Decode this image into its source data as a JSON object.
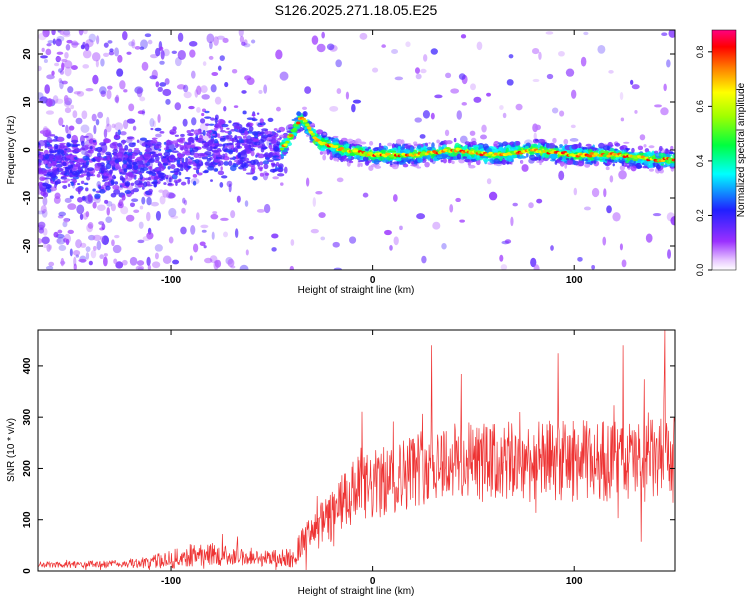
{
  "figure": {
    "title": "S126.2025.271.18.05.E25"
  },
  "colors": {
    "snr_line": "#ee3333",
    "axes": "#000000",
    "background": "#ffffff",
    "spectrogram_low": "#7b00e6",
    "spectrogram_high": "#ff0000"
  },
  "chart_data": [
    {
      "type": "heatmap",
      "title": "S126.2025.271.18.05.E25",
      "xlabel": "Height of straight line (km)",
      "ylabel": "Frequency (Hz)",
      "xlim": [
        -166,
        150
      ],
      "ylim": [
        -25,
        25
      ],
      "x_ticks": [
        -100,
        0,
        100
      ],
      "y_ticks": [
        -20,
        -10,
        0,
        10,
        20
      ],
      "grid": false,
      "colorbar": {
        "label": "Normalized spectral amplitude",
        "range": [
          0,
          0.88
        ],
        "ticks": [
          0.0,
          0.2,
          0.4,
          0.6,
          0.8
        ],
        "colormap": "rainbow"
      },
      "ridge": {
        "description_points": [
          {
            "x": -110,
            "y": -3
          },
          {
            "x": -80,
            "y": 1
          },
          {
            "x": -55,
            "y": 1
          },
          {
            "x": -45,
            "y": 0
          },
          {
            "x": -35,
            "y": 7
          },
          {
            "x": -28,
            "y": 2
          },
          {
            "x": -15,
            "y": 0
          },
          {
            "x": 0,
            "y": -1
          },
          {
            "x": 20,
            "y": -1
          },
          {
            "x": 40,
            "y": 0
          },
          {
            "x": 60,
            "y": -1
          },
          {
            "x": 80,
            "y": 0
          },
          {
            "x": 100,
            "y": -1
          },
          {
            "x": 120,
            "y": -1
          },
          {
            "x": 140,
            "y": -2
          },
          {
            "x": 150,
            "y": -2
          }
        ]
      }
    },
    {
      "type": "line",
      "xlabel": "Height of straight line (km)",
      "ylabel": "SNR (10 * v/v)",
      "xlim": [
        -166,
        150
      ],
      "ylim": [
        0,
        470
      ],
      "x_ticks": [
        -100,
        0,
        100
      ],
      "y_ticks": [
        0,
        100,
        200,
        300,
        400
      ],
      "grid": false,
      "envelope": [
        {
          "x": -166,
          "mean": 12,
          "spread": 6
        },
        {
          "x": -120,
          "mean": 14,
          "spread": 8
        },
        {
          "x": -100,
          "mean": 22,
          "spread": 18
        },
        {
          "x": -85,
          "mean": 35,
          "spread": 25
        },
        {
          "x": -60,
          "mean": 25,
          "spread": 15
        },
        {
          "x": -40,
          "mean": 25,
          "spread": 20
        },
        {
          "x": -35,
          "mean": 55,
          "spread": 30
        },
        {
          "x": -20,
          "mean": 110,
          "spread": 50
        },
        {
          "x": -10,
          "mean": 150,
          "spread": 70
        },
        {
          "x": 10,
          "mean": 180,
          "spread": 70
        },
        {
          "x": 30,
          "mean": 215,
          "spread": 80
        },
        {
          "x": 60,
          "mean": 210,
          "spread": 80
        },
        {
          "x": 90,
          "mean": 215,
          "spread": 80
        },
        {
          "x": 120,
          "mean": 215,
          "spread": 80
        },
        {
          "x": 150,
          "mean": 215,
          "spread": 85
        }
      ],
      "peak": {
        "x": 145,
        "y": 470
      }
    }
  ]
}
